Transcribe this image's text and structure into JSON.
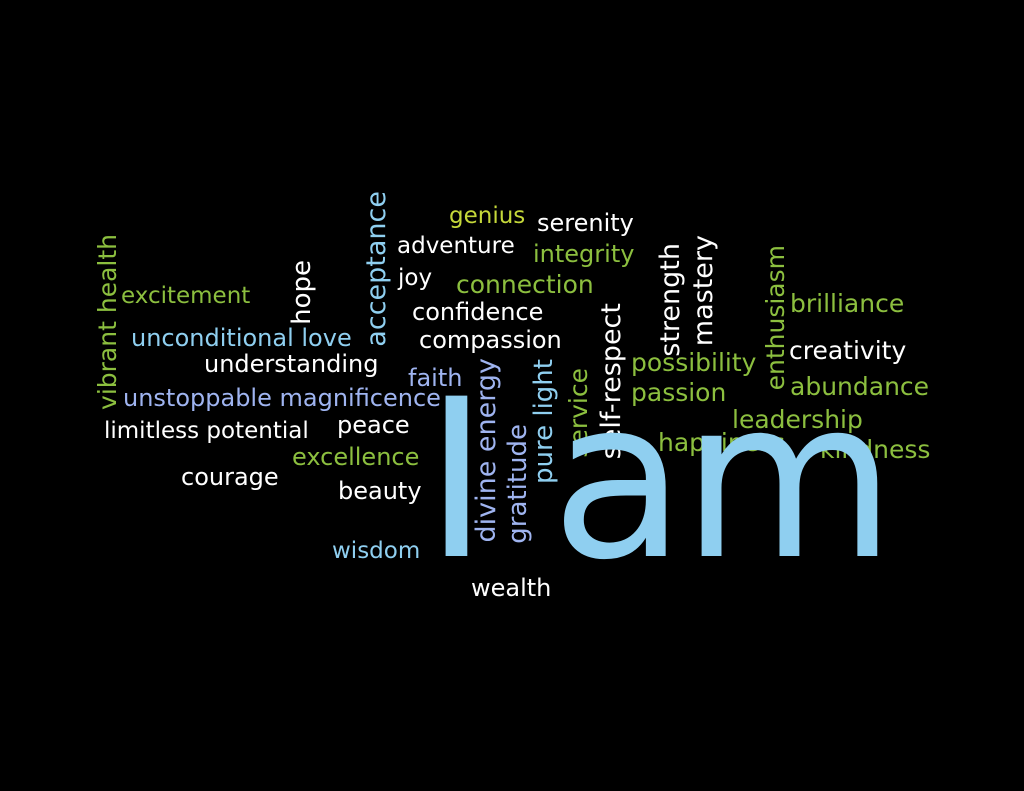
{
  "colors": {
    "background": "#000000",
    "white": "#ffffff",
    "green": "#8cbf3f",
    "lime": "#c5d83a",
    "blue": "#8fcff0",
    "periwinkle": "#9fb4f0"
  },
  "headline": "I am",
  "words": {
    "vibrant_health": "vibrant health",
    "excitement": "excitement",
    "hope": "hope",
    "acceptance": "acceptance",
    "genius": "genius",
    "serenity": "serenity",
    "adventure": "adventure",
    "integrity": "integrity",
    "joy": "joy",
    "connection": "connection",
    "confidence": "confidence",
    "compassion": "compassion",
    "unconditional_love": "unconditional love",
    "understanding": "understanding",
    "faith": "faith",
    "unstoppable_magnificence": "unstoppable magnificence",
    "limitless_potential": "limitless potential",
    "peace": "peace",
    "courage": "courage",
    "excellence": "excellence",
    "beauty": "beauty",
    "wisdom": "wisdom",
    "wealth": "wealth",
    "divine_energy": "divine energy",
    "gratitude": "gratitude",
    "pure_light": "pure light",
    "service": "service",
    "self_respect": "self-respect",
    "strength": "strength",
    "mastery": "mastery",
    "possibility": "possibility",
    "passion": "passion",
    "enthusiasm": "enthusiasm",
    "brilliance": "brilliance",
    "creativity": "creativity",
    "abundance": "abundance",
    "leadership": "leadership",
    "happiness": "happiness",
    "kindness": "kindness"
  }
}
